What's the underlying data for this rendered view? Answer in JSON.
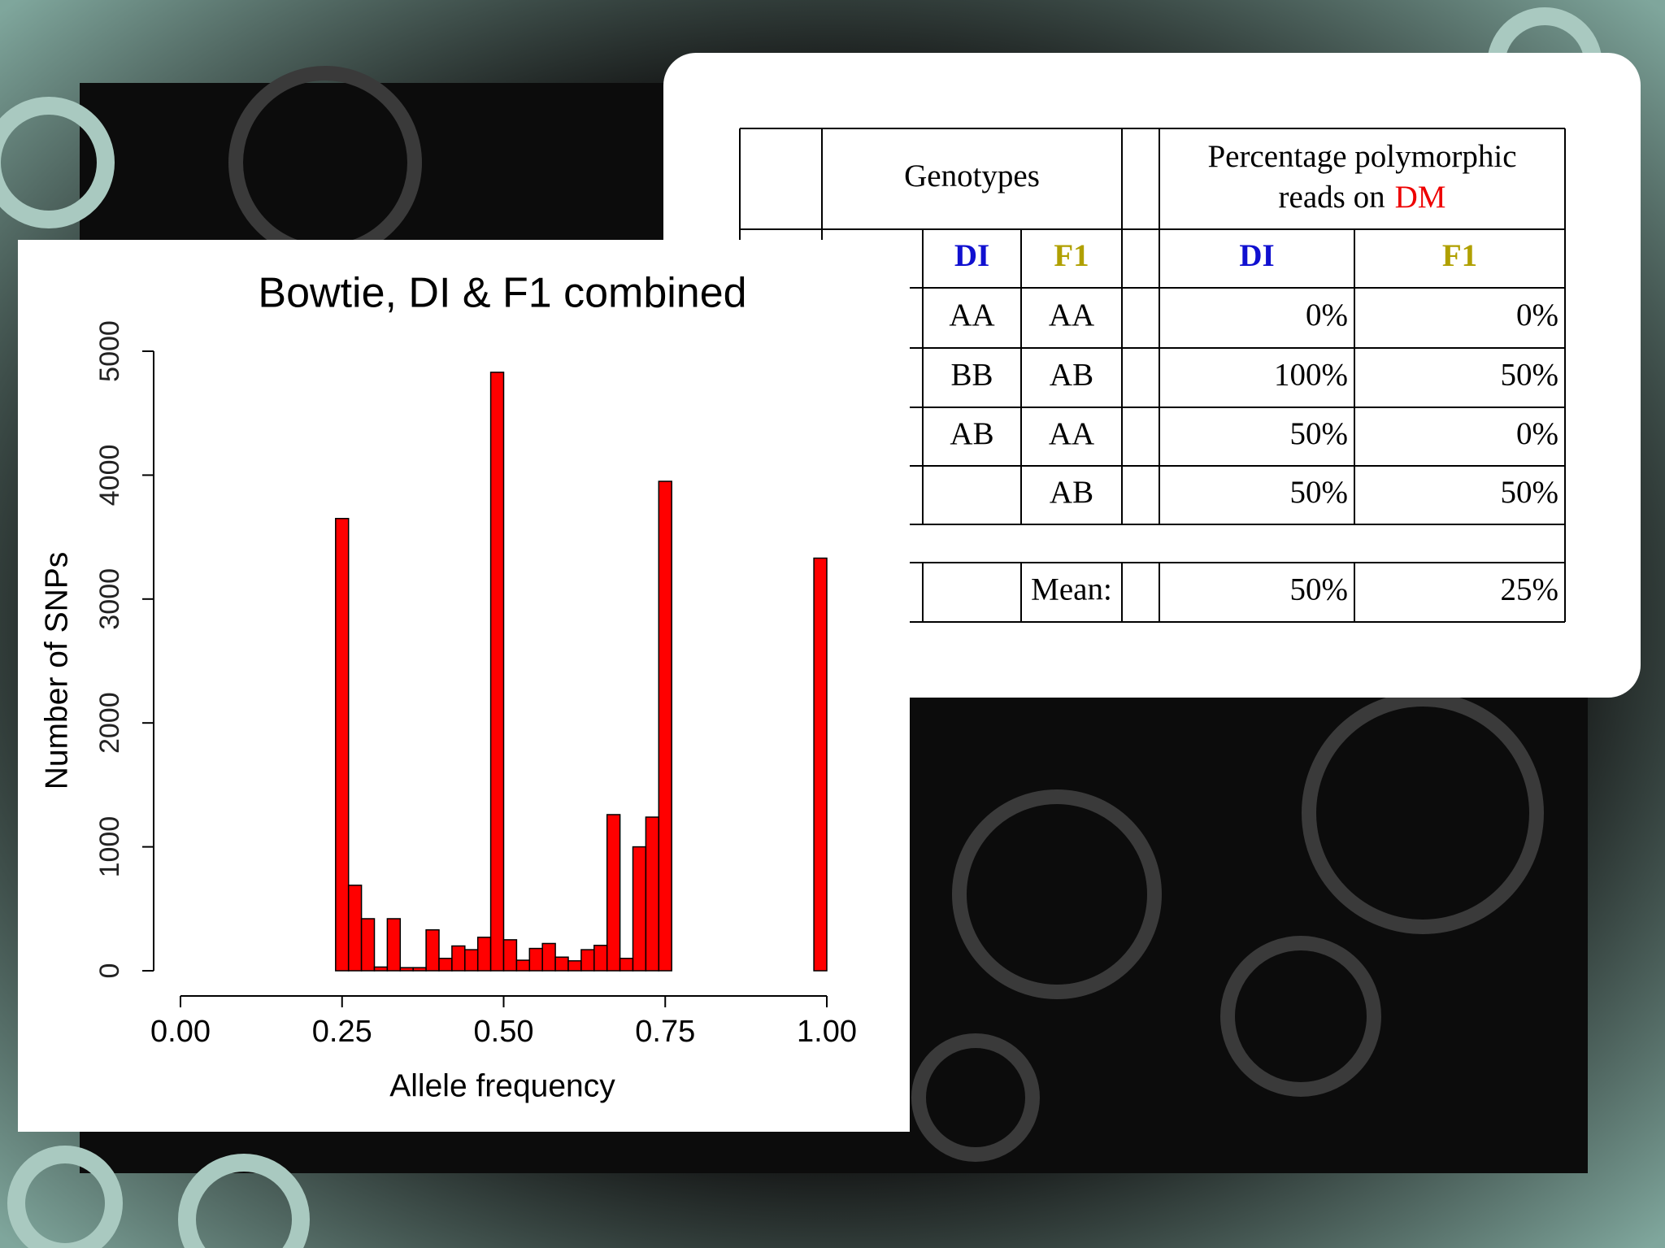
{
  "chart_data": {
    "type": "histogram",
    "title": "Bowtie, DI & F1 combined",
    "x_label": "Allele frequency",
    "y_label": "Number of SNPs",
    "bins": [
      0.24,
      0.26,
      0.28,
      0.3,
      0.32,
      0.34,
      0.36,
      0.38,
      0.4,
      0.42,
      0.44,
      0.46,
      0.48,
      0.5,
      0.52,
      0.54,
      0.56,
      0.58,
      0.6,
      0.62,
      0.64,
      0.66,
      0.68,
      0.7,
      0.72,
      0.74,
      0.76,
      0.78,
      0.8,
      0.82,
      0.84,
      0.86,
      0.88,
      0.9,
      0.92,
      0.94,
      0.96,
      0.98,
      1.0
    ],
    "values": [
      3650,
      690,
      420,
      30,
      420,
      25,
      25,
      330,
      100,
      200,
      170,
      270,
      4830,
      250,
      85,
      180,
      220,
      110,
      80,
      170,
      205,
      1260,
      100,
      1000,
      1240,
      3950,
      0,
      0,
      0,
      0,
      0,
      0,
      0,
      0,
      0,
      0,
      0,
      3330
    ],
    "color": "#ff0000",
    "xlim": [
      0,
      1
    ],
    "ylim": [
      0,
      5000
    ],
    "xticks": [
      {
        "value": 0,
        "label": "0.00"
      },
      {
        "value": 0.25,
        "label": "0.25"
      },
      {
        "value": 0.5,
        "label": "0.50"
      },
      {
        "value": 0.75,
        "label": "0.75"
      },
      {
        "value": 1,
        "label": "1.00"
      }
    ],
    "yticks": [
      0,
      1000,
      2000,
      3000,
      4000,
      5000
    ]
  },
  "table": {
    "header": {
      "genotypes": "Genotypes",
      "percentage": "Percentage polymorphic",
      "reads_on": "reads on",
      "dm": "DM"
    },
    "subheader": [
      "DI",
      "F1",
      "DI",
      "F1"
    ],
    "rows": [
      [
        "AA",
        "AA",
        "0%",
        "0%"
      ],
      [
        "BB",
        "AB",
        "100%",
        "50%"
      ],
      [
        "AB",
        "AA",
        "50%",
        "0%"
      ],
      [
        null,
        "AB",
        "50%",
        "50%"
      ]
    ],
    "mean": {
      "label": "Mean:",
      "values": [
        "50%",
        "25%"
      ]
    }
  }
}
